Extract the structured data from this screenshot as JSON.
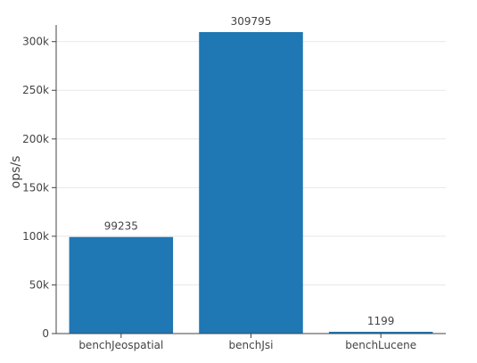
{
  "chart_data": {
    "type": "bar",
    "categories": [
      "benchJeospatial",
      "benchJsi",
      "benchLucene"
    ],
    "values": [
      99235,
      309795,
      1199
    ],
    "data_labels": [
      "99235",
      "309795",
      "1199"
    ],
    "title": "",
    "xlabel": "",
    "ylabel": "ops/s",
    "ylim": [
      0,
      309795
    ],
    "yticks": [
      0,
      50000,
      100000,
      150000,
      200000,
      250000,
      300000
    ],
    "ytick_labels": [
      "0",
      "50k",
      "100k",
      "150k",
      "200k",
      "250k",
      "300k"
    ],
    "grid": "horizontal",
    "bar_color": "#1f77b4"
  }
}
